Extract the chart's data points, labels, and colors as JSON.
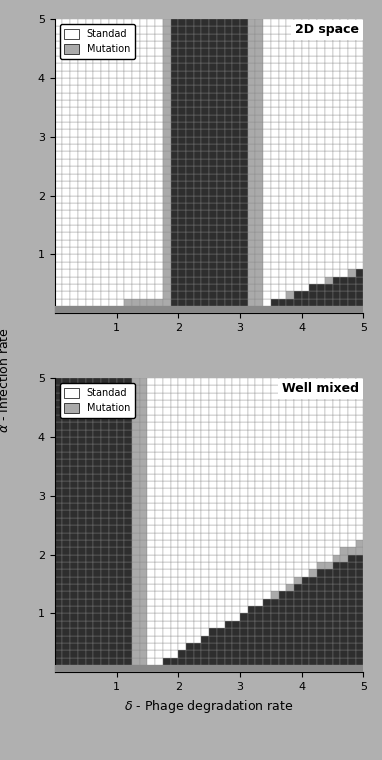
{
  "title_top": "2D space",
  "title_bot": "Well mixed",
  "xlabel": "$\\delta$ - Phage degradation rate",
  "ylabel": "$\\alpha$ - Infection rate",
  "xlim": [
    0,
    5
  ],
  "ylim": [
    0,
    5
  ],
  "xticks": [
    1,
    2,
    3,
    4,
    5
  ],
  "yticks": [
    1,
    2,
    3,
    4,
    5
  ],
  "legend_standard": "Standad",
  "legend_mutation": "Mutation",
  "dark_color": "#2e2e2e",
  "white_color": "#ffffff",
  "light_gray": "#aaaaaa",
  "black_spot": "#111111",
  "grid_line_color": "#888888",
  "fig_bg": "#b0b0b0",
  "bottom_band_color": "#888888"
}
